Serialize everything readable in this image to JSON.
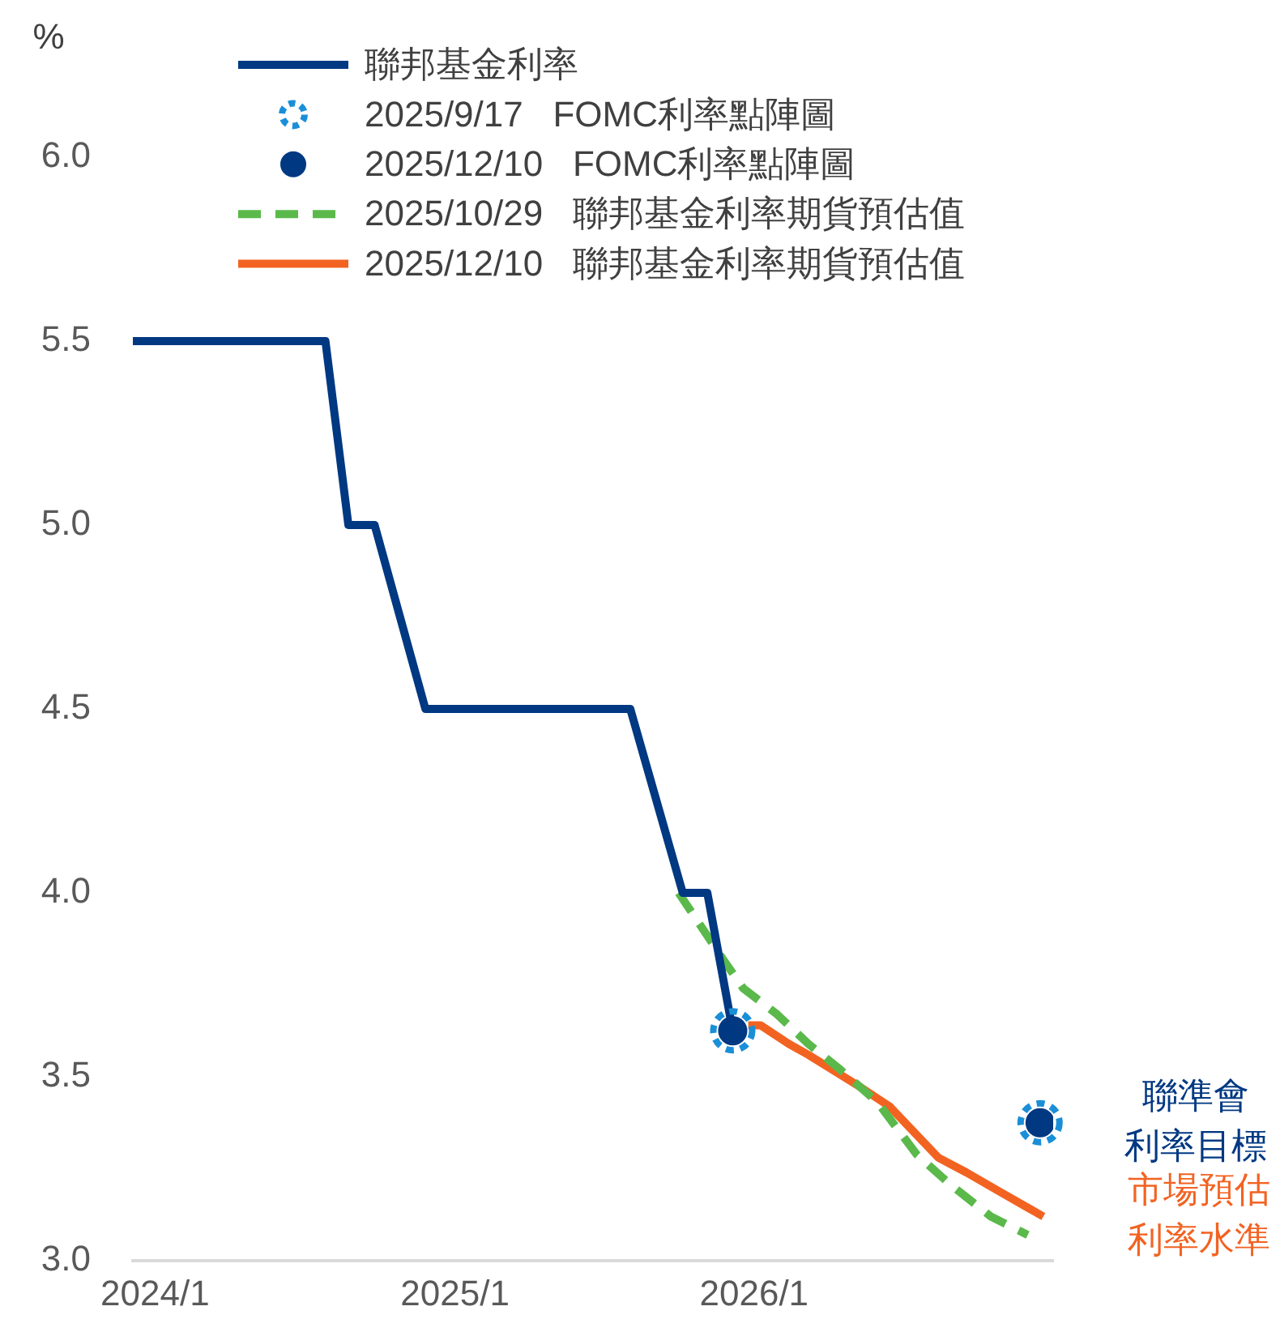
{
  "chart_data": {
    "type": "line",
    "ylabel": "%",
    "legend": "top",
    "xlim": [
      "2023-12-05",
      "2027-01-01"
    ],
    "xticks": [
      {
        "value": "2024-01",
        "label": "2024/1"
      },
      {
        "value": "2025-01",
        "label": "2025/1"
      },
      {
        "value": "2026-01",
        "label": "2026/1"
      }
    ],
    "ylim": [
      3,
      6
    ],
    "yticks": [
      {
        "value": 3,
        "label": "3.0"
      },
      {
        "value": 3.5,
        "label": "3.5"
      },
      {
        "value": 4,
        "label": "4.0"
      },
      {
        "value": 4.5,
        "label": "4.5"
      },
      {
        "value": 5,
        "label": "5.0"
      },
      {
        "value": 5.5,
        "label": "5.5"
      },
      {
        "value": 6,
        "label": "6.0"
      }
    ],
    "series": [
      {
        "name": "聯邦基金利率",
        "color": "#003882",
        "marker": "none",
        "line_style": "solid",
        "x": [
          "2023-12-05",
          "2024-07-27",
          "2024-08-24",
          "2024-09-25",
          "2024-11-26",
          "2025-08-03",
          "2025-10-06",
          "2025-11-05",
          "2025-12-06"
        ],
        "values": [
          5.5,
          5.5,
          5.0,
          5.0,
          4.5,
          4.5,
          4.0,
          4.0,
          3.625
        ]
      },
      {
        "name": "2025/9/17   FOMC利率點陣圖",
        "type": "scatter",
        "color": "#1a8fd8",
        "marker": "circle",
        "line_style": "dotted",
        "x": [
          "2025-12-06",
          "2026-12-16"
        ],
        "values": [
          3.625,
          3.375
        ]
      },
      {
        "name": "2025/12/10   FOMC利率點陣圖",
        "type": "scatter",
        "color": "#003882",
        "marker": "circle",
        "x": [
          "2025-12-06",
          "2026-12-16"
        ],
        "values": [
          3.625,
          3.375
        ]
      },
      {
        "name": "2025/10/29   聯邦基金利率期貨預估值",
        "color": "#5ab94a",
        "marker": "none",
        "line_style": "dashed",
        "x": [
          "2025-10-01",
          "2025-11-24",
          "2025-12-19",
          "2026-01-29",
          "2026-03-08",
          "2026-04-16",
          "2026-06-01",
          "2026-07-18",
          "2026-08-27",
          "2026-10-17",
          "2026-12-01"
        ],
        "values": [
          4.0,
          3.82,
          3.74,
          3.67,
          3.59,
          3.52,
          3.43,
          3.29,
          3.21,
          3.12,
          3.07
        ]
      },
      {
        "name": "2025/12/10   聯邦基金利率期貨預估值",
        "color": "#f26322",
        "marker": "none",
        "line_style": "solid",
        "x": [
          "2025-12-25",
          "2026-01-09",
          "2026-02-12",
          "2026-03-08",
          "2026-05-12",
          "2026-06-15",
          "2026-08-14",
          "2026-09-17",
          "2026-10-26",
          "2026-12-20"
        ],
        "values": [
          3.64,
          3.64,
          3.59,
          3.56,
          3.47,
          3.42,
          3.28,
          3.24,
          3.19,
          3.12
        ]
      }
    ],
    "annotations": [
      {
        "text": "聯準會利率目標",
        "x": "2026-12-16",
        "y": 3.375
      },
      {
        "text": "市場預估利率水準",
        "x": "2026-12-20",
        "y": 3.12
      }
    ]
  }
}
